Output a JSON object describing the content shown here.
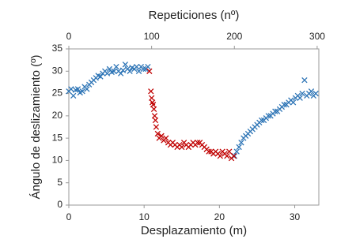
{
  "chart_data": {
    "type": "scatter",
    "xlabel": "Desplazamiento (m)",
    "x2label": "Repeticiones (nº)",
    "ylabel": "Ángulo de deslizamiento (º)",
    "xlim": [
      0,
      33.2
    ],
    "xticks": [
      0,
      10,
      20,
      30
    ],
    "x2lim": [
      0,
      302
    ],
    "x2ticks": [
      0,
      100,
      200,
      300
    ],
    "ylim": [
      0,
      35
    ],
    "yticks": [
      0,
      5,
      10,
      15,
      20,
      25,
      30,
      35
    ],
    "grid": false,
    "marker": "x",
    "series": [
      {
        "color": "#2e75b6",
        "x": [
          0,
          0.3,
          0.6,
          0.9,
          1.2,
          1.5,
          1.8,
          2.1,
          2.4,
          2.7,
          3.0,
          3.3,
          3.6,
          3.9,
          4.2,
          4.5,
          4.8,
          5.1,
          5.4,
          5.7,
          6.0,
          6.3,
          6.6,
          6.9,
          7.2,
          7.5,
          7.8,
          8.1,
          8.4,
          8.7,
          9.0,
          9.3,
          9.6,
          9.9,
          10.2,
          10.5,
          22.0,
          22.3,
          22.6,
          22.9,
          23.2,
          23.5,
          23.8,
          24.1,
          24.4,
          24.7,
          25.0,
          25.3,
          25.6,
          25.9,
          26.2,
          26.5,
          26.8,
          27.1,
          27.4,
          27.7,
          28.0,
          28.3,
          28.6,
          28.9,
          29.2,
          29.5,
          29.8,
          30.1,
          30.4,
          30.7,
          31.0,
          31.3,
          31.6,
          31.9,
          32.2,
          32.5,
          32.8
        ],
        "values": [
          25.5,
          26,
          24.5,
          25.8,
          26,
          25.2,
          25.5,
          26.5,
          26,
          27,
          27.5,
          28,
          28.5,
          29,
          28.8,
          29.5,
          30,
          29.5,
          30.5,
          29.8,
          30,
          31,
          30,
          29.5,
          30.2,
          31.5,
          30.5,
          30,
          30.8,
          30.5,
          31,
          30,
          31,
          30.5,
          30.5,
          31,
          11,
          12,
          13,
          14,
          15,
          15.5,
          16,
          16.5,
          17,
          17.5,
          18,
          18.5,
          19,
          19,
          19.5,
          20,
          20,
          20.5,
          21,
          21,
          21.5,
          22,
          22.5,
          22.5,
          23,
          23.5,
          23,
          24,
          24.5,
          24,
          25,
          28,
          24.5,
          25,
          25.5,
          24.5,
          25
        ]
      },
      {
        "color": "#c00000",
        "x": [
          10.7,
          10.9,
          11.0,
          11.1,
          11.2,
          11.3,
          11.4,
          11.5,
          11.6,
          11.8,
          12.0,
          12.3,
          12.6,
          12.9,
          13.2,
          13.5,
          13.8,
          14.1,
          14.4,
          14.7,
          15.0,
          15.3,
          15.6,
          15.9,
          16.2,
          16.5,
          16.8,
          17.1,
          17.4,
          17.7,
          18.0,
          18.3,
          18.6,
          18.9,
          19.2,
          19.5,
          19.8,
          20.1,
          20.4,
          20.7,
          21.0,
          21.3,
          21.6,
          21.9
        ],
        "values": [
          30,
          25.5,
          24,
          23,
          22.5,
          21.5,
          20,
          19,
          17.5,
          16,
          15,
          15.5,
          14.5,
          15,
          14,
          13.5,
          14,
          13.5,
          13,
          13.5,
          13,
          14,
          13.5,
          13,
          13.5,
          14,
          13.5,
          14,
          14,
          13.5,
          13,
          12.5,
          12,
          12,
          11.5,
          12,
          11.5,
          11,
          12,
          11.5,
          11,
          12,
          10.5,
          11
        ]
      }
    ]
  }
}
